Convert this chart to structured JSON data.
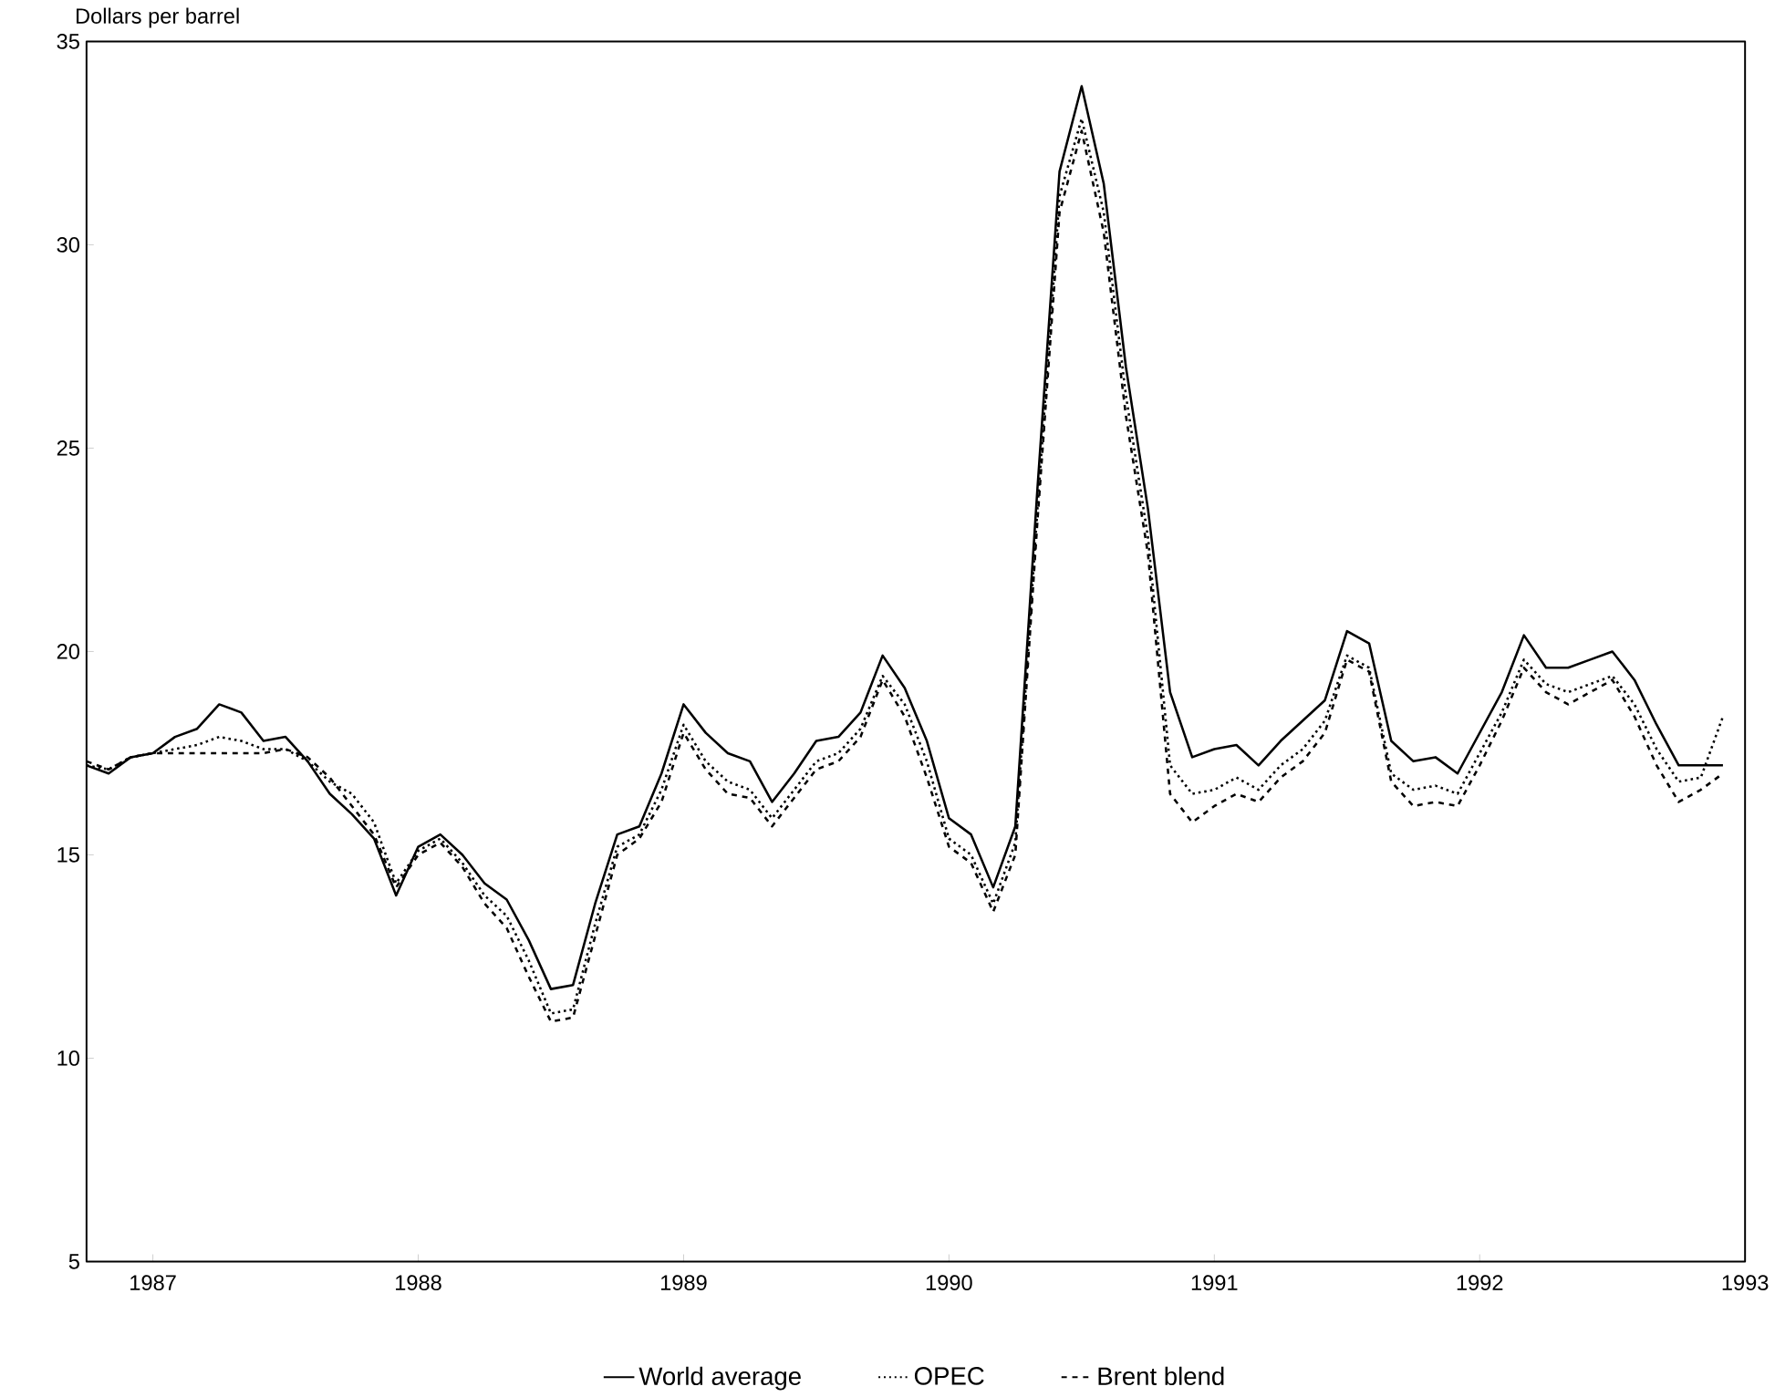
{
  "chart_data": {
    "type": "line",
    "ylabel": "Dollars per barrel",
    "x": [
      "1986-10",
      "1986-11",
      "1986-12",
      "1987-01",
      "1987-02",
      "1987-03",
      "1987-04",
      "1987-05",
      "1987-06",
      "1987-07",
      "1987-08",
      "1987-09",
      "1987-10",
      "1987-11",
      "1987-12",
      "1988-01",
      "1988-02",
      "1988-03",
      "1988-04",
      "1988-05",
      "1988-06",
      "1988-07",
      "1988-08",
      "1988-09",
      "1988-10",
      "1988-11",
      "1988-12",
      "1989-01",
      "1989-02",
      "1989-03",
      "1989-04",
      "1989-05",
      "1989-06",
      "1989-07",
      "1989-08",
      "1989-09",
      "1989-10",
      "1989-11",
      "1989-12",
      "1990-01",
      "1990-02",
      "1990-03",
      "1990-04",
      "1990-05",
      "1990-06",
      "1990-07",
      "1990-08",
      "1990-09",
      "1990-10",
      "1990-11",
      "1990-12",
      "1991-01",
      "1991-02",
      "1991-03",
      "1991-04",
      "1991-05",
      "1991-06",
      "1991-07",
      "1991-08",
      "1991-09",
      "1991-10",
      "1991-11",
      "1991-12",
      "1992-01",
      "1992-02",
      "1992-03",
      "1992-04",
      "1992-05",
      "1992-06",
      "1992-07",
      "1992-08",
      "1992-09",
      "1992-10",
      "1992-11",
      "1992-12"
    ],
    "xlim": [
      "1986-10",
      "1993-01"
    ],
    "xticks": [
      "1987",
      "1988",
      "1989",
      "1990",
      "1991",
      "1992",
      "1993"
    ],
    "ylim": [
      5,
      35
    ],
    "yticks": [
      5,
      10,
      15,
      20,
      25,
      30,
      35
    ],
    "legend": "bottom",
    "series": [
      {
        "name": "World average",
        "color": "#000000",
        "line_style": "solid",
        "values": [
          17.2,
          17.0,
          17.4,
          17.5,
          17.9,
          18.1,
          18.7,
          18.5,
          17.8,
          17.9,
          17.3,
          16.5,
          16.0,
          15.4,
          14.0,
          15.2,
          15.5,
          15.0,
          14.3,
          13.9,
          12.9,
          11.7,
          11.8,
          13.8,
          15.5,
          15.7,
          17.0,
          18.7,
          18.0,
          17.5,
          17.3,
          16.3,
          17.0,
          17.8,
          17.9,
          18.5,
          19.9,
          19.1,
          17.8,
          15.9,
          15.5,
          14.2,
          15.7,
          24.0,
          31.8,
          33.9,
          31.5,
          27.0,
          23.5,
          19.0,
          17.4,
          17.6,
          17.7,
          17.2,
          17.8,
          18.3,
          18.8,
          20.5,
          20.2,
          17.8,
          17.3,
          17.4,
          17.0,
          18.0,
          19.0,
          20.4,
          19.6,
          19.6,
          19.8,
          20.0,
          19.3,
          18.2,
          17.2,
          17.2,
          17.2
        ]
      },
      {
        "name": "OPEC",
        "color": "#000000",
        "line_style": "dotted",
        "values": [
          17.2,
          17.1,
          17.4,
          17.5,
          17.6,
          17.7,
          17.9,
          17.8,
          17.6,
          17.6,
          17.3,
          16.8,
          16.5,
          15.8,
          14.3,
          15.1,
          15.4,
          14.8,
          14.0,
          13.5,
          12.4,
          11.1,
          11.2,
          13.3,
          15.2,
          15.5,
          16.6,
          18.2,
          17.3,
          16.8,
          16.6,
          15.9,
          16.6,
          17.3,
          17.5,
          18.1,
          19.4,
          18.7,
          17.3,
          15.4,
          15.0,
          13.8,
          15.3,
          23.5,
          31.2,
          33.1,
          30.8,
          26.3,
          22.8,
          17.2,
          16.5,
          16.6,
          16.9,
          16.6,
          17.2,
          17.6,
          18.3,
          19.9,
          19.6,
          17.0,
          16.6,
          16.7,
          16.5,
          17.5,
          18.5,
          19.8,
          19.2,
          19.0,
          19.2,
          19.4,
          18.7,
          17.6,
          16.8,
          16.9,
          18.4
        ]
      },
      {
        "name": "Brent blend",
        "color": "#000000",
        "line_style": "dashed",
        "values": [
          17.3,
          17.1,
          17.4,
          17.5,
          17.5,
          17.5,
          17.5,
          17.5,
          17.5,
          17.6,
          17.4,
          16.9,
          16.2,
          15.5,
          14.2,
          15.0,
          15.3,
          14.7,
          13.8,
          13.2,
          12.0,
          10.9,
          11.0,
          13.0,
          15.0,
          15.4,
          16.3,
          18.0,
          17.1,
          16.5,
          16.4,
          15.7,
          16.4,
          17.1,
          17.3,
          17.9,
          19.3,
          18.4,
          16.9,
          15.2,
          14.8,
          13.6,
          15.0,
          23.2,
          30.8,
          32.8,
          30.3,
          25.8,
          22.4,
          16.5,
          15.8,
          16.2,
          16.5,
          16.3,
          16.9,
          17.3,
          18.0,
          19.8,
          19.5,
          16.8,
          16.2,
          16.3,
          16.2,
          17.2,
          18.3,
          19.6,
          19.0,
          18.7,
          19.0,
          19.3,
          18.4,
          17.2,
          16.3,
          16.6,
          17.0
        ]
      }
    ]
  }
}
